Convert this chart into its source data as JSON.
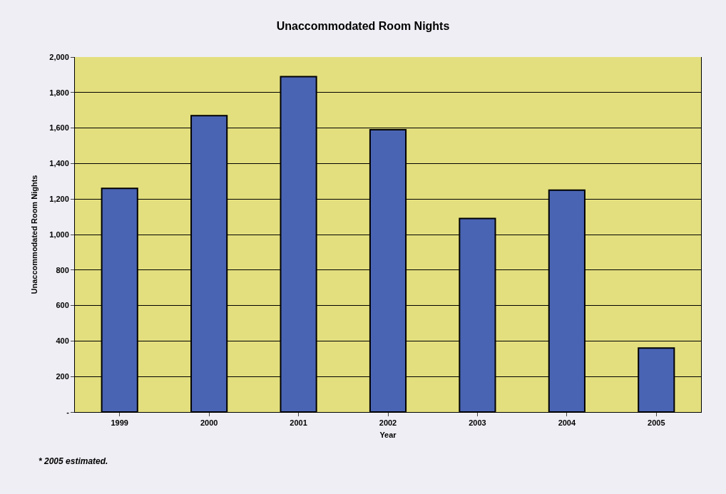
{
  "chart_data": {
    "type": "bar",
    "title": "Unaccommodated Room Nights",
    "categories": [
      "1999",
      "2000",
      "2001",
      "2002",
      "2003",
      "2004",
      "2005"
    ],
    "values": [
      1260,
      1670,
      1890,
      1590,
      1090,
      1250,
      360
    ],
    "color": "#4a64b4",
    "xlabel": "Year",
    "ylabel": "Unaccommodated Room Nights",
    "ylim": [
      0,
      2000
    ],
    "yticks": [
      {
        "value": 0,
        "label": "-"
      },
      {
        "value": 200,
        "label": "200"
      },
      {
        "value": 400,
        "label": "400"
      },
      {
        "value": 600,
        "label": "600"
      },
      {
        "value": 800,
        "label": "800"
      },
      {
        "value": 1000,
        "label": "1,000"
      },
      {
        "value": 1200,
        "label": "1,200"
      },
      {
        "value": 1400,
        "label": "1,400"
      },
      {
        "value": 1600,
        "label": "1,600"
      },
      {
        "value": 1800,
        "label": "1,800"
      },
      {
        "value": 2000,
        "label": "2,000"
      }
    ],
    "grid": "y",
    "legend": false,
    "annotations": [
      "* 2005 estimated."
    ]
  }
}
